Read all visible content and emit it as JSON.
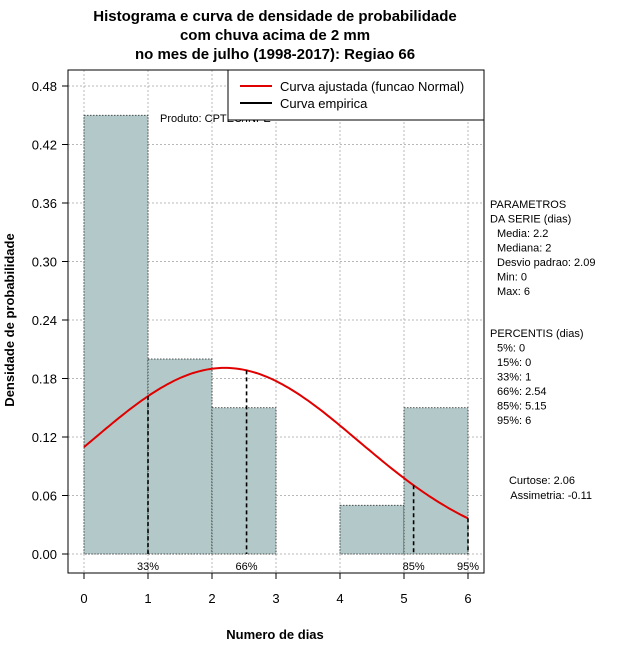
{
  "chart_data": {
    "type": "bar",
    "title": [
      "Histograma e curva de densidade de probabilidade",
      "com chuva acima de 2 mm",
      "no mes de julho (1998-2017): Regiao 66"
    ],
    "xlabel": "Numero de dias",
    "ylabel": "Densidade de probabilidade",
    "xlim": [
      -0.2,
      6.2
    ],
    "ylim": [
      0,
      0.5
    ],
    "xticks": [
      0,
      1,
      2,
      3,
      4,
      5,
      6
    ],
    "yticks": [
      0.0,
      0.06,
      0.12,
      0.18,
      0.24,
      0.3,
      0.36,
      0.42,
      0.48
    ],
    "ytick_labels": [
      "0.00",
      "0.06",
      "0.12",
      "0.18",
      "0.24",
      "0.30",
      "0.36",
      "0.42",
      "0.48"
    ],
    "bins": [
      {
        "from": 0,
        "to": 1,
        "value": 0.45
      },
      {
        "from": 1,
        "to": 2,
        "value": 0.2
      },
      {
        "from": 2,
        "to": 3,
        "value": 0.15
      },
      {
        "from": 3,
        "to": 4,
        "value": 0.0
      },
      {
        "from": 4,
        "to": 5,
        "value": 0.05
      },
      {
        "from": 5,
        "to": 6,
        "value": 0.15
      }
    ],
    "normal_fit": {
      "mean": 2.2,
      "sd": 2.09,
      "color": "#e00000"
    },
    "percentile_marks": [
      {
        "label": "33%",
        "x": 1
      },
      {
        "label": "66%",
        "x": 2.54
      },
      {
        "label": "85%",
        "x": 5.15
      },
      {
        "label": "95%",
        "x": 6
      }
    ],
    "legend": {
      "position": "top-right",
      "entries": [
        {
          "label": "Curva ajustada (funcao Normal)",
          "color": "#e00000"
        },
        {
          "label": "Curva empirica",
          "color": "#000000"
        }
      ]
    },
    "credit": "Produto: CPTEC/INPE",
    "grid": true
  },
  "side_panel": {
    "parametros_lines": [
      "PARAMETROS",
      "DA SERIE (dias)",
      "  Media: 2.2",
      "  Mediana: 2",
      "  Desvio padrao: 2.09",
      "  Min: 0",
      "  Max: 6"
    ],
    "percentis_lines": [
      "PERCENTIS (dias)",
      "  5%: 0",
      "  15%: 0",
      "  33%: 1",
      "  66%: 2.54",
      "  85%: 5.15",
      "  95%: 6"
    ],
    "shape_lines": [
      "Curtose: 2.06",
      "Assimetria: -0.11"
    ]
  }
}
